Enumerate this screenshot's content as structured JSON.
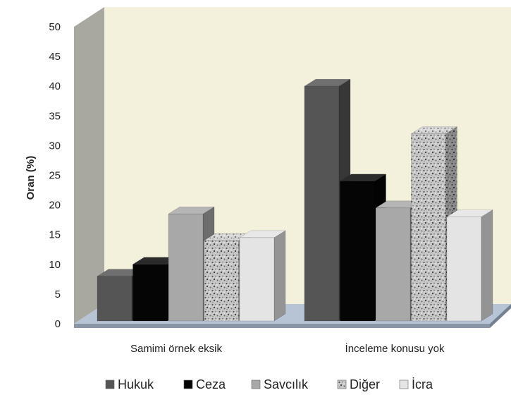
{
  "chart_data": {
    "type": "bar",
    "title": "",
    "ylabel": "Oran (%)",
    "xlabel": "",
    "ylim": [
      0,
      50
    ],
    "yticks": [
      0,
      5,
      10,
      15,
      20,
      25,
      30,
      35,
      40,
      45,
      50
    ],
    "categories": [
      "Samimi örnek eksik",
      "İnceleme konusu yok"
    ],
    "series": [
      {
        "name": "Hukuk",
        "values": [
          8,
          40
        ],
        "color": "#555555"
      },
      {
        "name": "Ceza",
        "values": [
          10,
          24
        ],
        "color": "#050505"
      },
      {
        "name": "Savcılık",
        "values": [
          18.5,
          19.5
        ],
        "color": "#a8a8a8"
      },
      {
        "name": "Diğer",
        "values": [
          14,
          32
        ],
        "color": "#bdbdbd",
        "pattern": "speckled"
      },
      {
        "name": "İcra",
        "values": [
          14.5,
          18
        ],
        "color": "#e4e4e4"
      }
    ],
    "legend_position": "bottom",
    "style": "3d-columns",
    "grid": false
  }
}
